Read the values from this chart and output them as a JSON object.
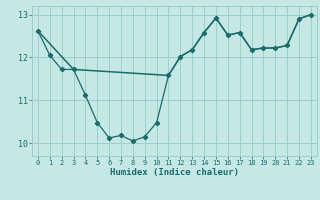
{
  "xlabel": "Humidex (Indice chaleur)",
  "background_color": "#c5e8e5",
  "grid_color": "#9dcfcc",
  "line_color": "#1a6b6b",
  "x_jagged": [
    0,
    1,
    2,
    3,
    4,
    5,
    6,
    7,
    8,
    9,
    10,
    11,
    12,
    13,
    14,
    15,
    16,
    17,
    18,
    19,
    20,
    21,
    22,
    23
  ],
  "y_jagged": [
    12.62,
    12.05,
    11.72,
    11.72,
    11.12,
    10.48,
    10.12,
    10.18,
    10.05,
    10.15,
    10.48,
    11.58,
    12.02,
    12.18,
    12.58,
    12.92,
    12.52,
    12.58,
    12.18,
    12.22,
    12.22,
    12.28,
    12.9,
    13.0
  ],
  "x_trend": [
    0,
    3,
    11,
    12,
    13,
    14,
    15,
    16,
    17,
    18,
    19,
    20,
    21,
    22,
    23
  ],
  "y_trend": [
    12.62,
    11.72,
    11.58,
    12.02,
    12.18,
    12.58,
    12.92,
    12.52,
    12.58,
    12.18,
    12.22,
    12.22,
    12.28,
    12.9,
    13.0
  ],
  "ylim": [
    9.7,
    13.2
  ],
  "xlim": [
    -0.5,
    23.5
  ],
  "yticks": [
    10,
    11,
    12,
    13
  ],
  "xticks": [
    0,
    1,
    2,
    3,
    4,
    5,
    6,
    7,
    8,
    9,
    10,
    11,
    12,
    13,
    14,
    15,
    16,
    17,
    18,
    19,
    20,
    21,
    22,
    23
  ]
}
